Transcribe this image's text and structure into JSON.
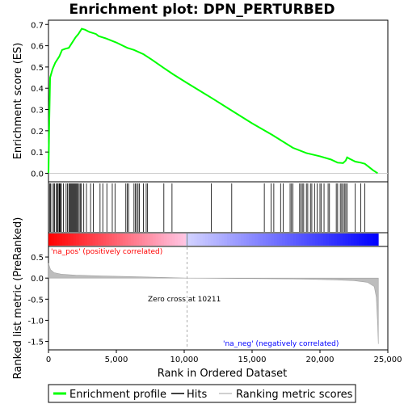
{
  "chart_data": {
    "type": "line",
    "title": "Enrichment plot: DPN_PERTURBED",
    "xlabel": "Rank in Ordered Dataset",
    "ylabel_top": "Enrichment score (ES)",
    "ylabel_bottom": "Ranked list metric (PreRanked)",
    "x_ticks": [
      "0",
      "5,000",
      "10,000",
      "15,000",
      "20,000",
      "25,000"
    ],
    "x_tick_values": [
      0,
      5000,
      10000,
      15000,
      20000,
      25000
    ],
    "y_ticks_top": [
      "0.0",
      "0.1",
      "0.2",
      "0.3",
      "0.4",
      "0.5",
      "0.6",
      "0.7"
    ],
    "y_tick_values_top": [
      0,
      0.1,
      0.2,
      0.3,
      0.4,
      0.5,
      0.6,
      0.7
    ],
    "y_ticks_bottom": [
      "0.5",
      "0.0",
      "-0.5",
      "-1.0",
      "-1.5"
    ],
    "y_tick_values_bottom": [
      0.5,
      0,
      -0.5,
      -1.0,
      -1.5
    ],
    "xlim": [
      0,
      25000
    ],
    "ylim_top": [
      -0.04,
      0.72
    ],
    "ylim_bottom": [
      -1.7,
      0.75
    ],
    "n_genes": 24300,
    "zero_cross": 10211,
    "annotations": {
      "pos": "'na_pos' (positively correlated)",
      "neg": "'na_neg' (negatively correlated)",
      "zero": "Zero cross at 10211"
    },
    "enrichment_profile": {
      "name": "Enrichment profile",
      "color": "#00ff00",
      "points": [
        [
          0,
          0.0
        ],
        [
          50,
          0.22
        ],
        [
          120,
          0.45
        ],
        [
          300,
          0.49
        ],
        [
          500,
          0.52
        ],
        [
          800,
          0.55
        ],
        [
          1000,
          0.58
        ],
        [
          1200,
          0.585
        ],
        [
          1500,
          0.59
        ],
        [
          1700,
          0.61
        ],
        [
          2000,
          0.64
        ],
        [
          2200,
          0.655
        ],
        [
          2350,
          0.67
        ],
        [
          2450,
          0.68
        ],
        [
          2700,
          0.675
        ],
        [
          3000,
          0.665
        ],
        [
          3500,
          0.655
        ],
        [
          3700,
          0.645
        ],
        [
          4200,
          0.635
        ],
        [
          5000,
          0.615
        ],
        [
          5800,
          0.59
        ],
        [
          6300,
          0.58
        ],
        [
          7000,
          0.56
        ],
        [
          7600,
          0.535
        ],
        [
          8500,
          0.495
        ],
        [
          9200,
          0.465
        ],
        [
          10200,
          0.425
        ],
        [
          12000,
          0.355
        ],
        [
          13500,
          0.295
        ],
        [
          15000,
          0.235
        ],
        [
          16500,
          0.18
        ],
        [
          18000,
          0.12
        ],
        [
          19000,
          0.095
        ],
        [
          20000,
          0.08
        ],
        [
          20800,
          0.065
        ],
        [
          21300,
          0.05
        ],
        [
          21700,
          0.048
        ],
        [
          21900,
          0.06
        ],
        [
          22000,
          0.075
        ],
        [
          22200,
          0.068
        ],
        [
          22600,
          0.055
        ],
        [
          23000,
          0.05
        ],
        [
          23300,
          0.045
        ],
        [
          23600,
          0.03
        ],
        [
          23900,
          0.015
        ],
        [
          24250,
          0.0
        ]
      ]
    },
    "hits": [
      80,
      150,
      250,
      380,
      450,
      560,
      650,
      700,
      780,
      830,
      880,
      950,
      1100,
      1300,
      1400,
      1500,
      1560,
      1620,
      1680,
      1740,
      1800,
      1860,
      1920,
      1980,
      2040,
      2100,
      2180,
      2260,
      2340,
      2420,
      2600,
      2800,
      3100,
      3300,
      3800,
      4000,
      4300,
      4700,
      4900,
      5700,
      5800,
      5900,
      6300,
      6400,
      6500,
      6600,
      6700,
      7000,
      7200,
      7300,
      8500,
      9100,
      12000,
      13500,
      15900,
      16400,
      16600,
      17100,
      17300,
      17800,
      17900,
      18000,
      18500,
      18600,
      18700,
      18800,
      19000,
      19100,
      19300,
      19400,
      19600,
      19800,
      20000,
      20100,
      20300,
      20600,
      20700,
      21200,
      21300,
      21500,
      21600,
      21700,
      21800,
      21900,
      22000,
      22600,
      23000,
      23300
    ],
    "metric_series": {
      "name": "Ranking metric scores",
      "color": "#b0b0b0",
      "points": [
        [
          0,
          0.35
        ],
        [
          150,
          0.2
        ],
        [
          400,
          0.13
        ],
        [
          1000,
          0.09
        ],
        [
          2000,
          0.07
        ],
        [
          4000,
          0.05
        ],
        [
          6000,
          0.035
        ],
        [
          8000,
          0.02
        ],
        [
          10211,
          0.0
        ],
        [
          14000,
          -0.01
        ],
        [
          18000,
          -0.02
        ],
        [
          21000,
          -0.04
        ],
        [
          22500,
          -0.06
        ],
        [
          23500,
          -0.1
        ],
        [
          24000,
          -0.2
        ],
        [
          24150,
          -0.45
        ],
        [
          24250,
          -1.1
        ],
        [
          24300,
          -1.56
        ]
      ]
    },
    "legend": {
      "items": [
        {
          "label": "Enrichment profile",
          "color": "#00ff00"
        },
        {
          "label": "Hits",
          "color": "#000000"
        },
        {
          "label": "Ranking metric scores",
          "color": "#c0c0c0"
        }
      ],
      "placement": "bottom"
    },
    "colors": {
      "pos_band": "#ff0000",
      "neg_band": "#0000ff",
      "zero_line": "#aaaaaa",
      "annot_pos": "#ff0000",
      "annot_neg": "#0000ff"
    }
  }
}
